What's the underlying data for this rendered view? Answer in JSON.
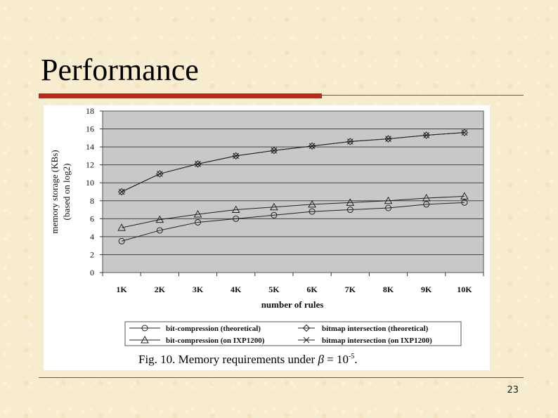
{
  "slide": {
    "title": "Performance",
    "page_number": "23"
  },
  "figure": {
    "caption_prefix": "Fig. 10. Memory requirements under ",
    "caption_beta": "β",
    "caption_eq": " = 10",
    "caption_exp": "-5",
    "caption_suffix": "."
  },
  "chart_data": {
    "type": "line",
    "xlabel": "number of rules",
    "ylabel_line1": "memory storage (KBs)",
    "ylabel_line2": "(based on log2)",
    "categories": [
      "1K",
      "2K",
      "3K",
      "4K",
      "5K",
      "6K",
      "7K",
      "8K",
      "9K",
      "10K"
    ],
    "ylim": [
      0,
      18
    ],
    "yticks": [
      "0",
      "2",
      "4",
      "6",
      "8",
      "10",
      "12",
      "14",
      "16",
      "18"
    ],
    "grid": true,
    "plot_background": "#c8c8c8",
    "legend_position": "bottom",
    "series": [
      {
        "name": "bit-compression (theoretical)",
        "marker": "circle",
        "values": [
          3.5,
          4.7,
          5.6,
          6.0,
          6.4,
          6.8,
          7.0,
          7.2,
          7.6,
          7.8
        ]
      },
      {
        "name": "bitmap intersection (theoretical)",
        "marker": "diamond",
        "values": [
          9.0,
          11.0,
          12.1,
          13.0,
          13.6,
          14.1,
          14.6,
          14.9,
          15.3,
          15.6
        ]
      },
      {
        "name": "bit-compression (on IXP1200)",
        "marker": "triangle",
        "values": [
          5.0,
          5.9,
          6.5,
          7.0,
          7.3,
          7.6,
          7.8,
          8.0,
          8.3,
          8.5
        ]
      },
      {
        "name": "bitmap intersection (on IXP1200)",
        "marker": "cross",
        "values": [
          9.0,
          11.0,
          12.1,
          13.0,
          13.6,
          14.1,
          14.6,
          14.9,
          15.3,
          15.6
        ]
      }
    ]
  },
  "colors": {
    "accent_red": "#c0251a",
    "background": "#f8ecce"
  }
}
